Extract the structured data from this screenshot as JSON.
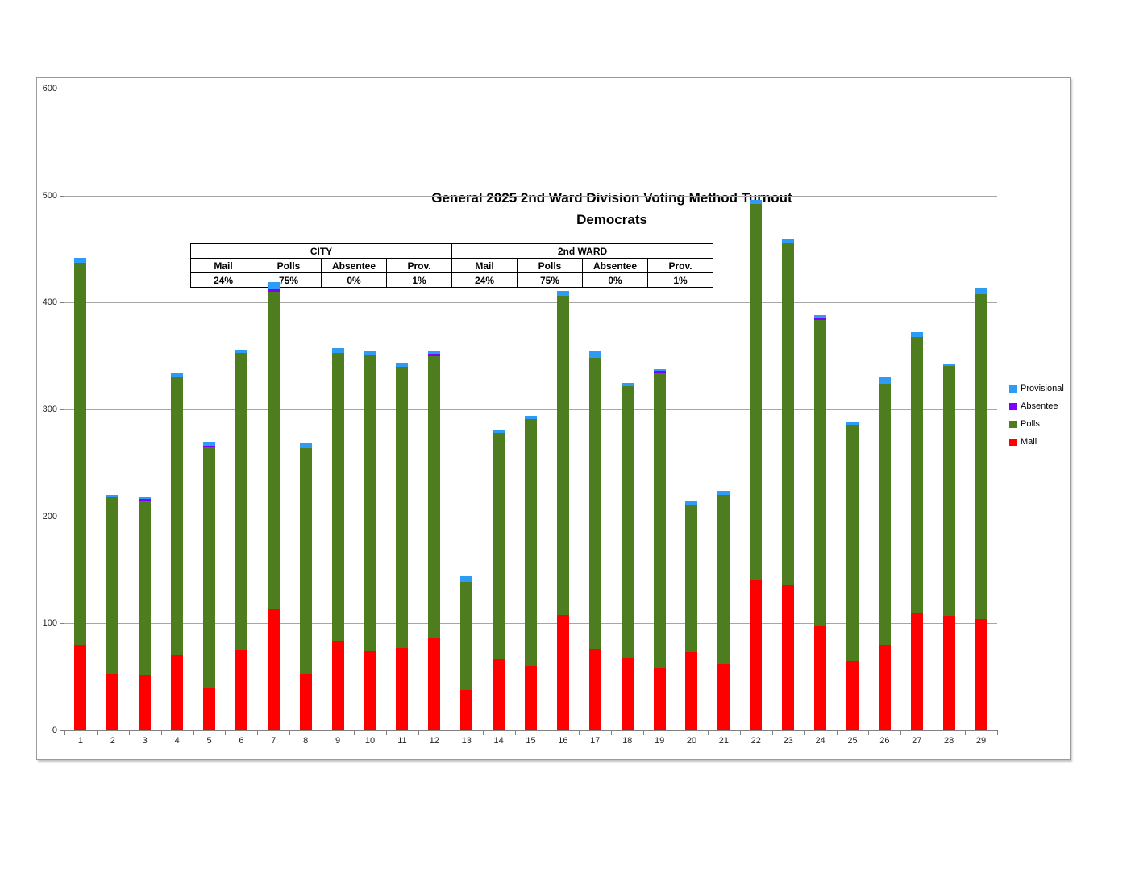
{
  "title": {
    "line1": "General 2025 2nd Ward Division Voting Method Turnout",
    "line2": "Democrats"
  },
  "summary_table": {
    "group_city": "CITY",
    "group_ward": "2nd WARD",
    "columns": [
      "Mail",
      "Polls",
      "Absentee",
      "Prov."
    ],
    "city_values": [
      "24%",
      "75%",
      "0%",
      "1%"
    ],
    "ward_values": [
      "24%",
      "75%",
      "0%",
      "1%"
    ]
  },
  "legend": [
    {
      "label": "Provisional",
      "color": "#2e9bf5"
    },
    {
      "label": "Absentee",
      "color": "#7f00ff"
    },
    {
      "label": "Polls",
      "color": "#4e7d20"
    },
    {
      "label": "Mail",
      "color": "#ff0000"
    }
  ],
  "chart_data": {
    "type": "bar",
    "stacked": true,
    "title": "General 2025 2nd Ward Division Voting Method Turnout Democrats",
    "xlabel": "",
    "ylabel": "",
    "ylim": [
      0,
      600
    ],
    "ytick_interval": 100,
    "grid": true,
    "legend_position": "right",
    "categories": [
      "1",
      "2",
      "3",
      "4",
      "5",
      "6",
      "7",
      "8",
      "9",
      "10",
      "11",
      "12",
      "13",
      "14",
      "15",
      "16",
      "17",
      "18",
      "19",
      "20",
      "21",
      "22",
      "23",
      "24",
      "25",
      "26",
      "27",
      "28",
      "29"
    ],
    "series": [
      {
        "name": "Mail",
        "color": "#ff0000",
        "values": [
          80,
          53,
          51,
          70,
          40,
          75,
          114,
          53,
          84,
          74,
          77,
          86,
          38,
          66,
          60,
          108,
          76,
          68,
          58,
          73,
          62,
          140,
          136,
          97,
          65,
          80,
          109,
          107,
          104
        ]
      },
      {
        "name": "Polls",
        "color": "#4e7d20",
        "values": [
          357,
          165,
          164,
          260,
          225,
          278,
          296,
          211,
          269,
          277,
          263,
          264,
          101,
          212,
          231,
          298,
          272,
          254,
          276,
          138,
          158,
          352,
          320,
          287,
          221,
          244,
          259,
          234,
          304
        ]
      },
      {
        "name": "Absentee",
        "color": "#7f00ff",
        "values": [
          0,
          0,
          1,
          0,
          1,
          0,
          3,
          0,
          0,
          0,
          0,
          2,
          0,
          0,
          0,
          0,
          0,
          0,
          2,
          0,
          0,
          0,
          0,
          1,
          0,
          0,
          0,
          0,
          0
        ]
      },
      {
        "name": "Provisional",
        "color": "#2e9bf5",
        "values": [
          5,
          2,
          2,
          4,
          4,
          3,
          6,
          5,
          4,
          4,
          4,
          2,
          6,
          3,
          3,
          5,
          7,
          3,
          2,
          3,
          4,
          4,
          4,
          3,
          3,
          6,
          4,
          2,
          6
        ]
      }
    ]
  }
}
